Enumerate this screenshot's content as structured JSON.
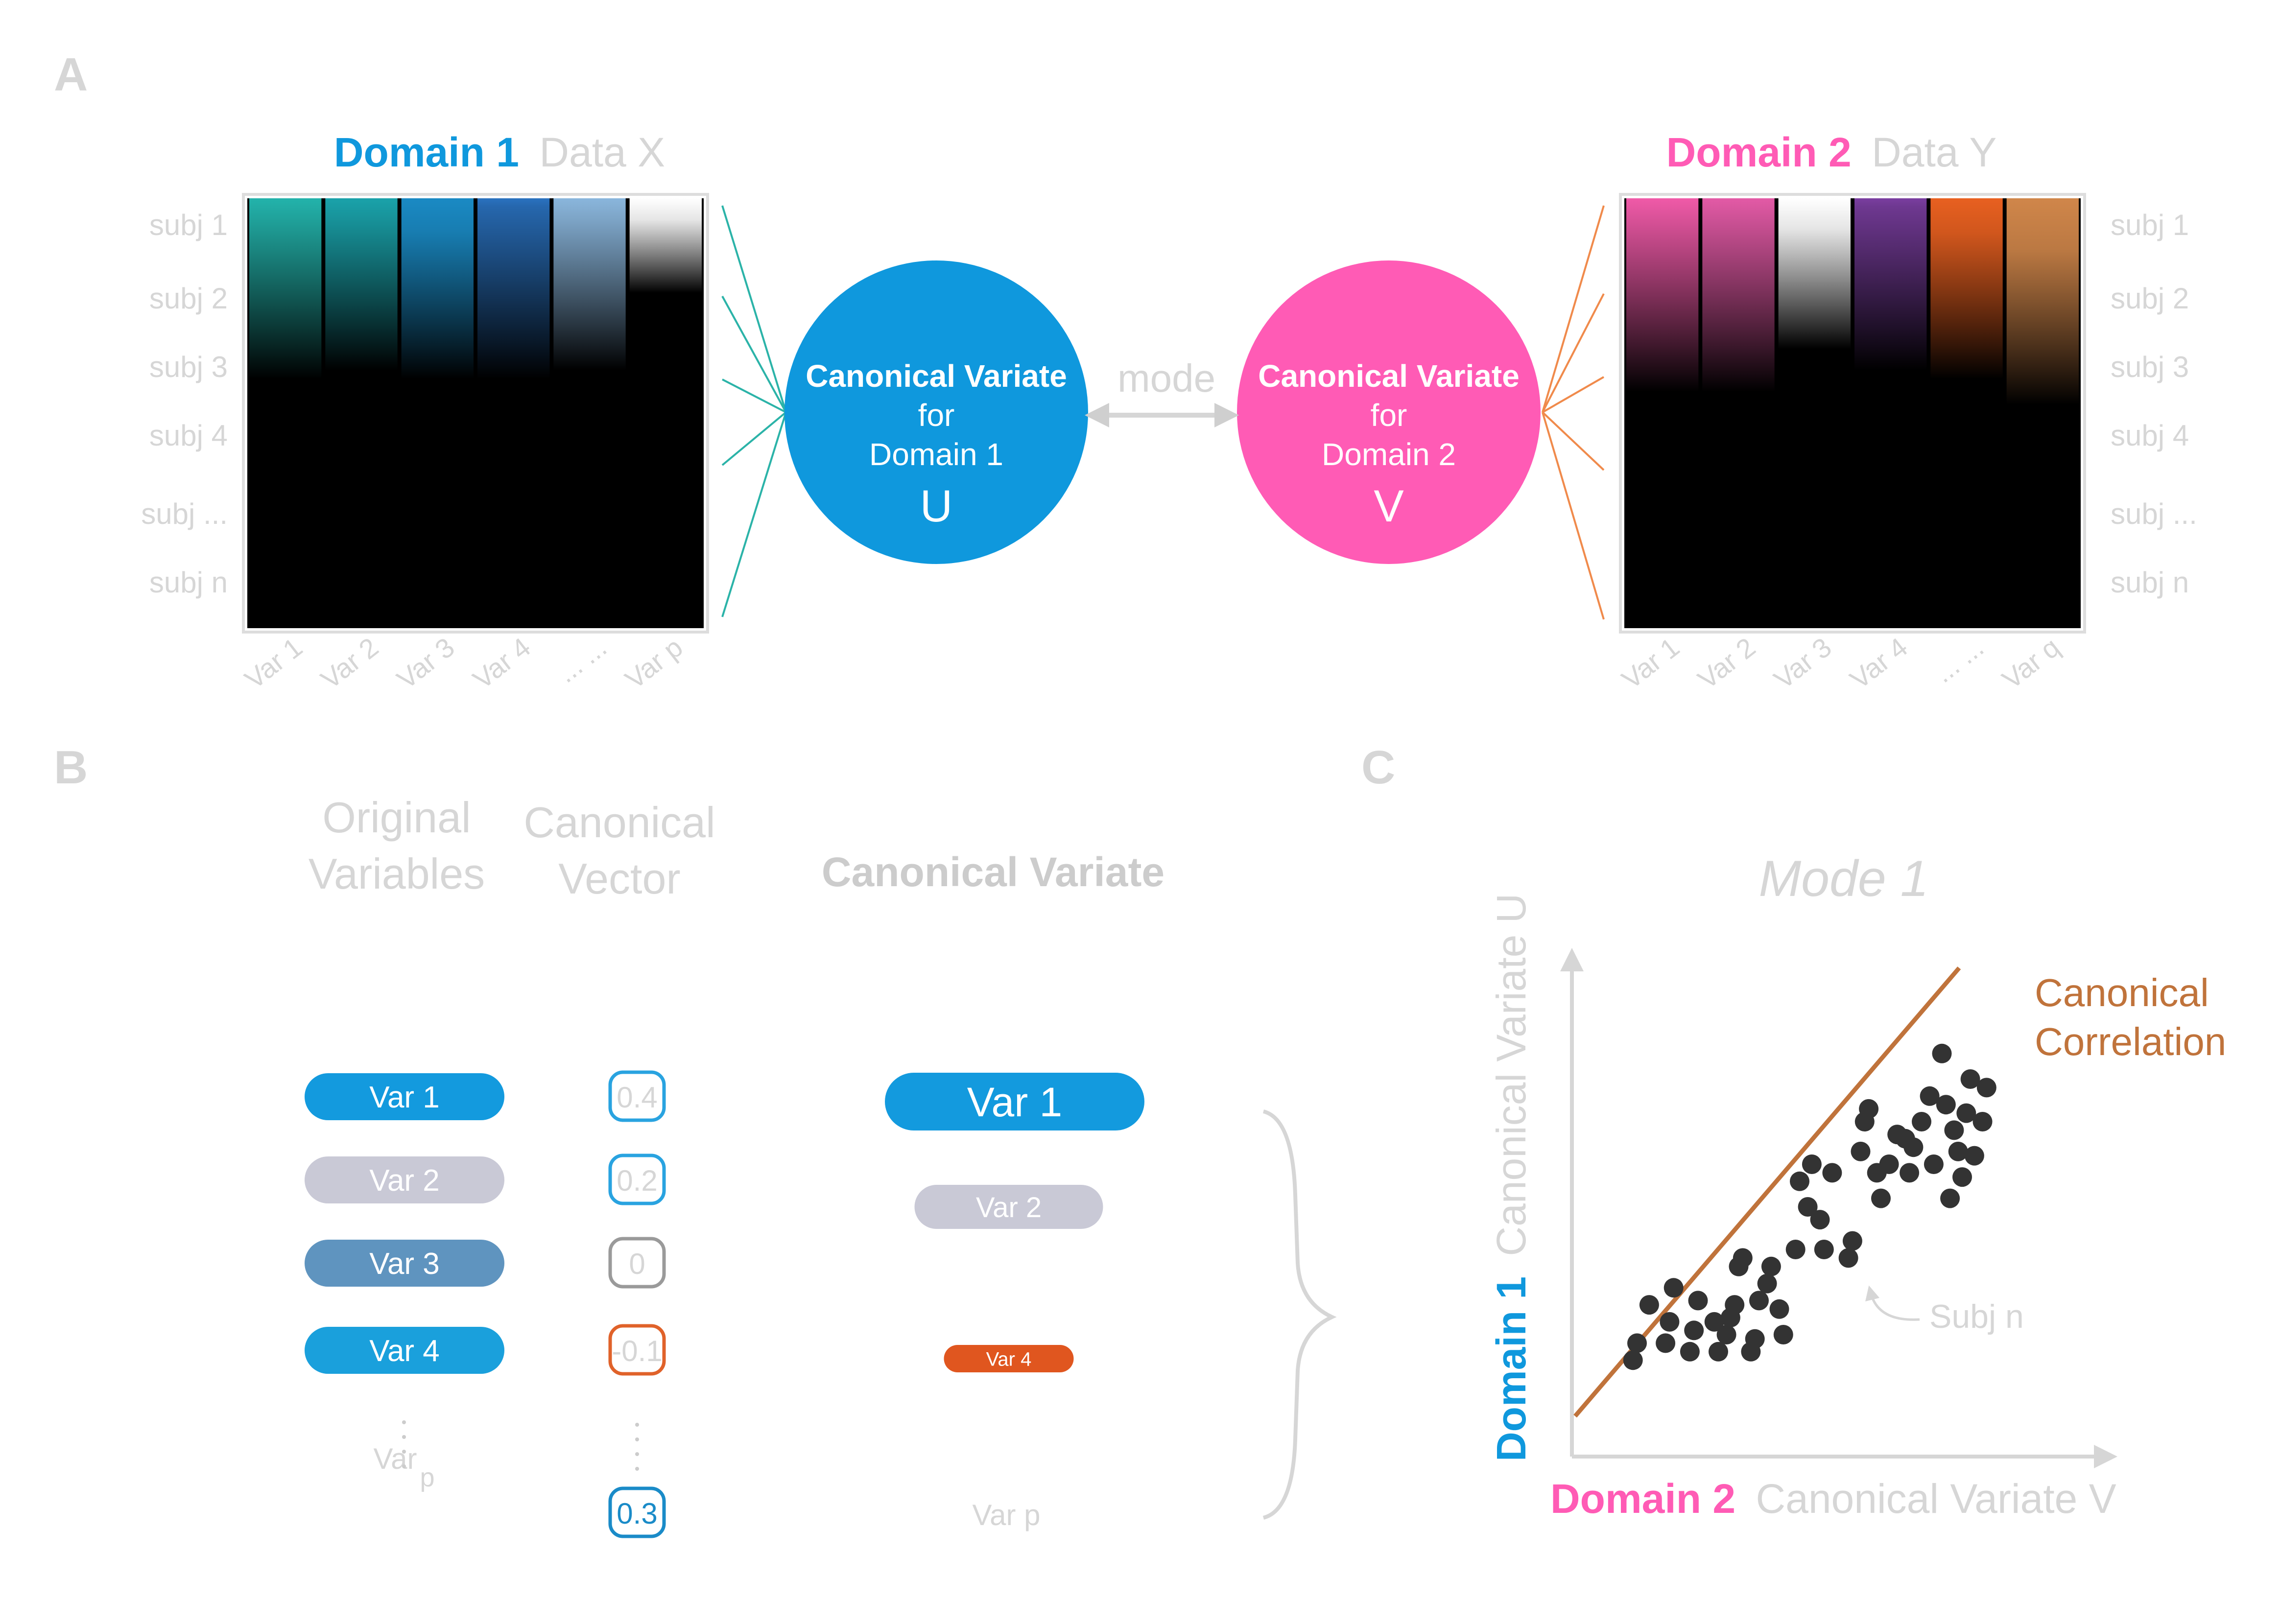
{
  "panels": {
    "a": "A",
    "b": "B",
    "c": "C"
  },
  "domain1": {
    "name": "Domain 1",
    "data_label": "Data X",
    "color": "#0f98dd",
    "subjects": [
      "subj 1",
      "subj 2",
      "subj 3",
      "subj 4",
      "subj ...",
      "subj n"
    ],
    "variables": [
      "Var 1",
      "Var 2",
      "Var 3",
      "Var 4",
      "... ...",
      "Var p"
    ],
    "column_colors": [
      "#23b3ab",
      "#1aa2aa",
      "#1a8ac4",
      "#2a72c0",
      "#8ab6dc",
      "#ffffff"
    ]
  },
  "domain2": {
    "name": "Domain 2",
    "data_label": "Data Y",
    "color": "#ff5bb5",
    "subjects": [
      "subj 1",
      "subj 2",
      "subj 3",
      "subj 4",
      "subj ...",
      "subj n"
    ],
    "variables": [
      "Var 1",
      "Var 2",
      "Var 3",
      "Var 4",
      "... ...",
      "Var q"
    ],
    "column_colors": [
      "#f05aa8",
      "#e35aa6",
      "#ffffff",
      "#7a3ea0",
      "#e86020",
      "#d0864a"
    ]
  },
  "variate_u": {
    "title": "Canonical Variate",
    "line2": "for",
    "line3": "Domain 1",
    "symbol": "U",
    "color": "#0f98dd"
  },
  "variate_v": {
    "title": "Canonical Variate",
    "line2": "for",
    "line3": "Domain 2",
    "symbol": "V",
    "color": "#ff5bb5"
  },
  "mode_label": "mode",
  "panel_b": {
    "heading_original_1": "Original",
    "heading_original_2": "Variables",
    "heading_vector_1": "Canonical",
    "heading_vector_2": "Vector",
    "heading_variate": "Canonical Variate",
    "rows": [
      {
        "var": "Var 1",
        "weight": "0.4",
        "pill_color": "#139ade",
        "weight_color": "#29a3e0"
      },
      {
        "var": "Var 2",
        "weight": "0.2",
        "pill_color": "#c9c9d6",
        "weight_color": "#29a3e0"
      },
      {
        "var": "Var 3",
        "weight": "0",
        "pill_color": "#5f94bf",
        "weight_color": "#9a9a9a"
      },
      {
        "var": "Var 4",
        "weight": "-0.1",
        "pill_color": "#1aa0dc",
        "weight_color": "#e0622a"
      }
    ],
    "last_var_text": "Var",
    "last_var_sub": "p",
    "last_weight": "0.3",
    "last_weight_color": "#1a8bc8",
    "variate_items": [
      {
        "label": "Var 1",
        "color": "#139ade"
      },
      {
        "label": "Var 2",
        "color": "#c9c9d6"
      },
      {
        "label": "Var 4",
        "color": "#e0561f"
      }
    ],
    "variate_last": "Var p"
  },
  "panel_c": {
    "title": "Mode 1",
    "y_axis_domain": "Domain 1",
    "y_axis_label": "Canonical Variate U",
    "x_axis_domain": "Domain 2",
    "x_axis_label": "Canonical Variate V",
    "line_label_1": "Canonical",
    "line_label_2": "Correlation",
    "line_color": "#c0733b",
    "point_color": "#333333",
    "annotation": "Subj n"
  },
  "chart_data": {
    "type": "scatter",
    "title": "Mode 1",
    "xlabel": "Domain 2 Canonical Variate V",
    "ylabel": "Domain 1 Canonical Variate U",
    "xlim": [
      0,
      100
    ],
    "ylim": [
      0,
      100
    ],
    "grid": false,
    "fit_line": {
      "x": [
        2,
        76
      ],
      "y": [
        8,
        90
      ]
    },
    "points": [
      [
        9,
        14
      ],
      [
        10,
        18
      ],
      [
        13,
        27
      ],
      [
        17,
        18
      ],
      [
        18,
        23
      ],
      [
        19,
        31
      ],
      [
        23,
        16
      ],
      [
        24,
        21
      ],
      [
        25,
        28
      ],
      [
        29,
        23
      ],
      [
        30,
        16
      ],
      [
        32,
        20
      ],
      [
        33,
        24
      ],
      [
        34,
        27
      ],
      [
        35,
        36
      ],
      [
        36,
        38
      ],
      [
        38,
        16
      ],
      [
        39,
        19
      ],
      [
        40,
        28
      ],
      [
        42,
        32
      ],
      [
        43,
        36
      ],
      [
        45,
        26
      ],
      [
        46,
        20
      ],
      [
        49,
        40
      ],
      [
        50,
        56
      ],
      [
        52,
        50
      ],
      [
        53,
        60
      ],
      [
        55,
        47
      ],
      [
        56,
        40
      ],
      [
        58,
        58
      ],
      [
        62,
        38
      ],
      [
        63,
        42
      ],
      [
        65,
        63
      ],
      [
        66,
        70
      ],
      [
        67,
        73
      ],
      [
        69,
        58
      ],
      [
        70,
        52
      ],
      [
        72,
        60
      ],
      [
        74,
        67
      ],
      [
        76,
        66
      ],
      [
        77,
        58
      ],
      [
        78,
        64
      ],
      [
        80,
        70
      ],
      [
        82,
        76
      ],
      [
        83,
        60
      ],
      [
        85,
        86
      ],
      [
        86,
        74
      ],
      [
        87,
        52
      ],
      [
        88,
        68
      ],
      [
        89,
        63
      ],
      [
        90,
        57
      ],
      [
        91,
        72
      ],
      [
        92,
        80
      ],
      [
        93,
        62
      ],
      [
        95,
        70
      ],
      [
        96,
        78
      ]
    ]
  }
}
